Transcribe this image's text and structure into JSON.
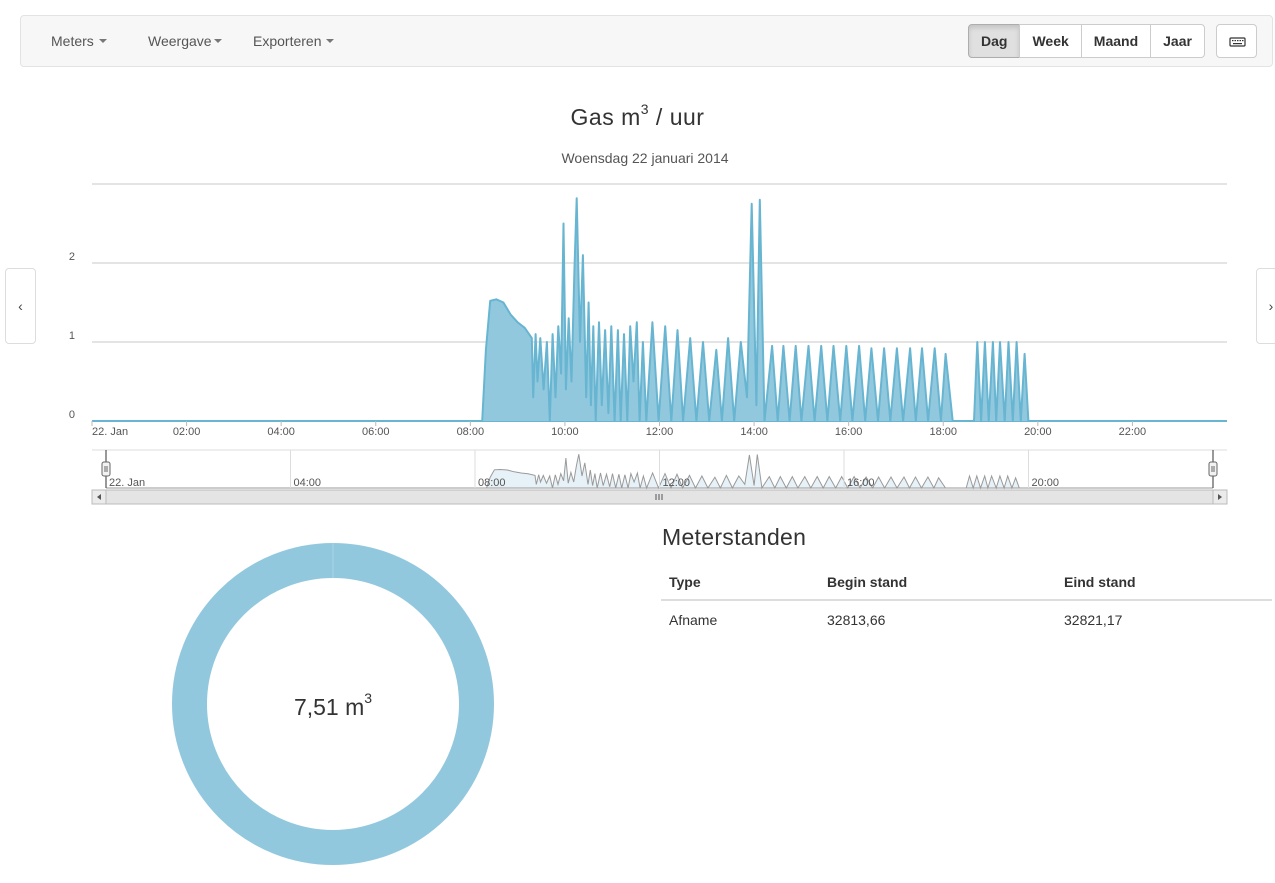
{
  "navbar": {
    "menus": [
      {
        "label": "Meters"
      },
      {
        "label": "Weergave"
      },
      {
        "label": "Exporteren"
      }
    ],
    "period_buttons": [
      {
        "label": "Dag",
        "active": true
      },
      {
        "label": "Week",
        "active": false
      },
      {
        "label": "Maand",
        "active": false
      },
      {
        "label": "Jaar",
        "active": false
      }
    ],
    "keyboard_icon": "keyboard-icon"
  },
  "nav_arrows": {
    "prev": "‹",
    "next": "›"
  },
  "chart": {
    "title": "Gas m",
    "title_sup": "3",
    "title_suffix": " / uur",
    "subtitle": "Woensdag 22 januari 2014"
  },
  "chart_data": {
    "type": "area",
    "title": "Gas m3 / uur",
    "subtitle": "Woensdag 22 januari 2014",
    "xlabel": "",
    "ylabel": "",
    "ylim": [
      0,
      3
    ],
    "xlim": [
      "00:00",
      "24:00"
    ],
    "y_ticks": [
      "0",
      "1",
      "2"
    ],
    "x_ticks": [
      "22. Jan",
      "02:00",
      "04:00",
      "06:00",
      "08:00",
      "10:00",
      "12:00",
      "14:00",
      "16:00",
      "18:00",
      "20:00",
      "22:00"
    ],
    "navigator_ticks": [
      "22. Jan",
      "04:00",
      "08:00",
      "12:00",
      "16:00",
      "20:00"
    ],
    "color": "#67b5d1",
    "fill": "#92c8de",
    "grid": true,
    "series": [
      {
        "name": "Gas",
        "points": [
          [
            0.0,
            0
          ],
          [
            8.25,
            0
          ],
          [
            8.33,
            0.9
          ],
          [
            8.42,
            1.52
          ],
          [
            8.55,
            1.54
          ],
          [
            8.7,
            1.5
          ],
          [
            8.85,
            1.35
          ],
          [
            9.0,
            1.25
          ],
          [
            9.15,
            1.18
          ],
          [
            9.3,
            1.05
          ],
          [
            9.33,
            0.3
          ],
          [
            9.38,
            1.1
          ],
          [
            9.42,
            0.5
          ],
          [
            9.48,
            1.05
          ],
          [
            9.55,
            0.4
          ],
          [
            9.62,
            1.0
          ],
          [
            9.68,
            0
          ],
          [
            9.74,
            1.1
          ],
          [
            9.8,
            0.3
          ],
          [
            9.86,
            1.2
          ],
          [
            9.92,
            0.6
          ],
          [
            9.97,
            2.5
          ],
          [
            10.02,
            0.4
          ],
          [
            10.08,
            1.3
          ],
          [
            10.14,
            0.5
          ],
          [
            10.2,
            1.9
          ],
          [
            10.25,
            2.82
          ],
          [
            10.32,
            1.0
          ],
          [
            10.38,
            2.1
          ],
          [
            10.45,
            0.3
          ],
          [
            10.5,
            1.5
          ],
          [
            10.55,
            0.2
          ],
          [
            10.6,
            1.2
          ],
          [
            10.65,
            0
          ],
          [
            10.72,
            1.25
          ],
          [
            10.78,
            0.2
          ],
          [
            10.85,
            1.15
          ],
          [
            10.92,
            0.1
          ],
          [
            10.98,
            1.2
          ],
          [
            11.05,
            0
          ],
          [
            11.12,
            1.15
          ],
          [
            11.18,
            0
          ],
          [
            11.25,
            1.1
          ],
          [
            11.32,
            0
          ],
          [
            11.38,
            1.2
          ],
          [
            11.45,
            0.5
          ],
          [
            11.52,
            1.25
          ],
          [
            11.58,
            0
          ],
          [
            11.65,
            1.0
          ],
          [
            11.72,
            0
          ],
          [
            11.85,
            1.25
          ],
          [
            11.98,
            0
          ],
          [
            12.12,
            1.2
          ],
          [
            12.25,
            0
          ],
          [
            12.38,
            1.15
          ],
          [
            12.5,
            0
          ],
          [
            12.65,
            1.05
          ],
          [
            12.78,
            0
          ],
          [
            12.92,
            1.0
          ],
          [
            13.05,
            0
          ],
          [
            13.2,
            0.9
          ],
          [
            13.32,
            0
          ],
          [
            13.45,
            1.05
          ],
          [
            13.58,
            0
          ],
          [
            13.72,
            1.0
          ],
          [
            13.85,
            0.3
          ],
          [
            13.95,
            2.75
          ],
          [
            14.05,
            0.2
          ],
          [
            14.12,
            2.8
          ],
          [
            14.22,
            0
          ],
          [
            14.38,
            0.95
          ],
          [
            14.5,
            0
          ],
          [
            14.62,
            0.95
          ],
          [
            14.75,
            0
          ],
          [
            14.88,
            0.95
          ],
          [
            15.0,
            0
          ],
          [
            15.15,
            0.95
          ],
          [
            15.28,
            0
          ],
          [
            15.42,
            0.95
          ],
          [
            15.55,
            0
          ],
          [
            15.68,
            0.95
          ],
          [
            15.82,
            0
          ],
          [
            15.95,
            0.95
          ],
          [
            16.08,
            0
          ],
          [
            16.22,
            0.95
          ],
          [
            16.35,
            0
          ],
          [
            16.48,
            0.92
          ],
          [
            16.62,
            0
          ],
          [
            16.75,
            0.92
          ],
          [
            16.88,
            0
          ],
          [
            17.02,
            0.92
          ],
          [
            17.15,
            0
          ],
          [
            17.3,
            0.92
          ],
          [
            17.42,
            0
          ],
          [
            17.55,
            0.92
          ],
          [
            17.68,
            0
          ],
          [
            17.82,
            0.92
          ],
          [
            17.95,
            0
          ],
          [
            18.05,
            0.85
          ],
          [
            18.2,
            0
          ],
          [
            18.65,
            0
          ],
          [
            18.72,
            1.0
          ],
          [
            18.8,
            0
          ],
          [
            18.88,
            1.0
          ],
          [
            18.96,
            0
          ],
          [
            19.05,
            1.0
          ],
          [
            19.12,
            0
          ],
          [
            19.2,
            1.0
          ],
          [
            19.3,
            0
          ],
          [
            19.38,
            1.0
          ],
          [
            19.47,
            0
          ],
          [
            19.55,
            1.0
          ],
          [
            19.64,
            0
          ],
          [
            19.72,
            0.85
          ],
          [
            19.8,
            0
          ],
          [
            24.0,
            0
          ]
        ]
      }
    ]
  },
  "donut": {
    "value": "7,51 m",
    "unit_sup": "3",
    "color": "#92c8de"
  },
  "meterstanden": {
    "title": "Meterstanden",
    "columns": [
      "Type",
      "Begin stand",
      "Eind stand"
    ],
    "rows": [
      [
        "Afname",
        "32813,66",
        "32821,17"
      ]
    ]
  }
}
